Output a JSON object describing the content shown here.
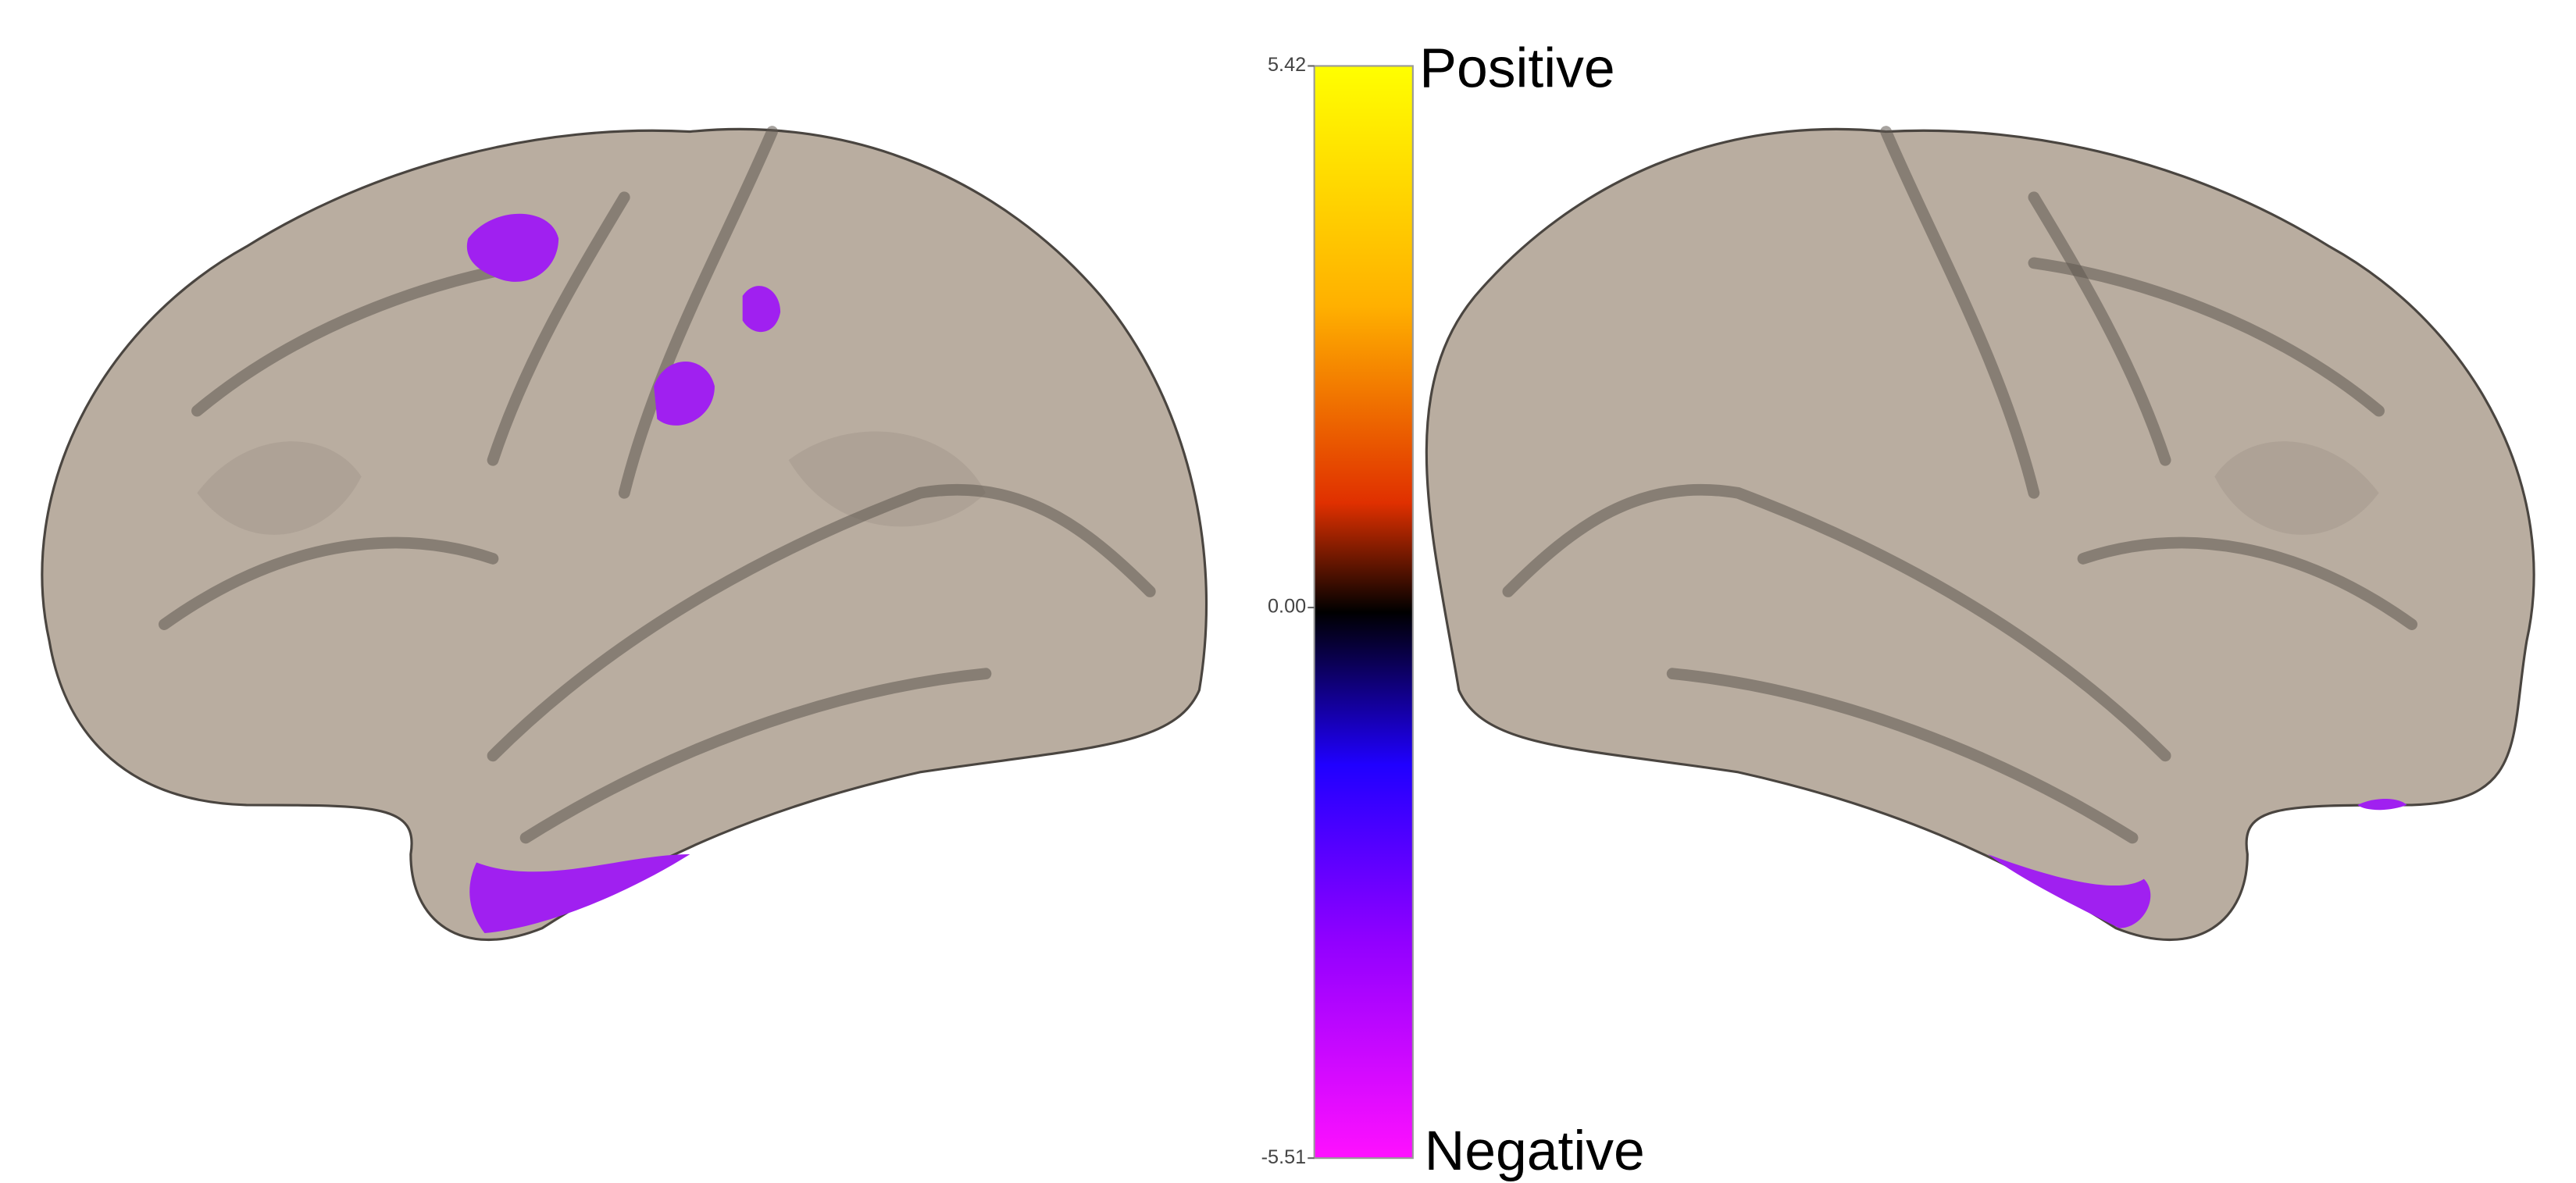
{
  "colorbar": {
    "range": [
      -5.51,
      5.42
    ],
    "ticks": [
      {
        "value": 5.42,
        "label": "5.42"
      },
      {
        "value": 0,
        "label": "0.00"
      },
      {
        "value": -5.51,
        "label": "-5.51"
      }
    ],
    "positive_label": "Positive",
    "negative_label": "Negative"
  }
}
